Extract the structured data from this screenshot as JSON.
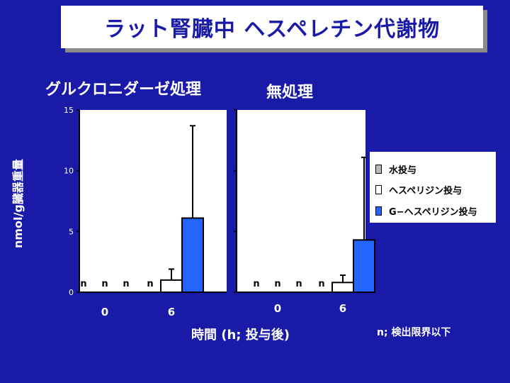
{
  "title": "ラット腎臓中 ヘスペレチン代謝物",
  "panels": [
    {
      "label": "グルクロニダーゼ処理"
    },
    {
      "label": "無処理"
    }
  ],
  "ylabel": "nmol/g臓器重量",
  "xlabel": "時間 (h; 投与後)",
  "note": "n; 検出限界以下",
  "nd_marker": "n",
  "legend": [
    {
      "label": "水投与",
      "swatch": "dotted"
    },
    {
      "label": "ヘスペリジン投与",
      "swatch": "white"
    },
    {
      "label": "G−ヘスペリジン投与",
      "swatch": "blue"
    }
  ],
  "colors": {
    "background": "#1a1aa8",
    "title_text": "#1a1aa8",
    "g_bar": "#2266ff",
    "plot_bg": "#ffffff"
  },
  "chart_data": [
    {
      "type": "bar",
      "title": "グルクロニダーゼ処理",
      "categories": [
        "0",
        "6"
      ],
      "ylim": [
        0,
        15
      ],
      "yticks": [
        "0",
        "5",
        "10",
        "15"
      ],
      "series": [
        {
          "name": "水投与",
          "values": [
            null,
            null
          ],
          "not_detected": [
            true,
            true
          ]
        },
        {
          "name": "ヘスペリジン投与",
          "values": [
            null,
            1.0
          ],
          "errors": [
            null,
            0.9
          ],
          "not_detected": [
            true,
            false
          ]
        },
        {
          "name": "G−ヘスペリジン投与",
          "values": [
            null,
            6.1
          ],
          "errors": [
            null,
            7.6
          ],
          "not_detected": [
            true,
            false
          ]
        }
      ]
    },
    {
      "type": "bar",
      "title": "無処理",
      "categories": [
        "0",
        "6"
      ],
      "ylim": [
        0,
        15
      ],
      "yticks": [
        "0",
        "5",
        "10",
        "15"
      ],
      "series": [
        {
          "name": "水投与",
          "values": [
            null,
            null
          ],
          "not_detected": [
            true,
            true
          ]
        },
        {
          "name": "ヘスペリジン投与",
          "values": [
            null,
            0.8
          ],
          "errors": [
            null,
            0.6
          ],
          "not_detected": [
            true,
            false
          ]
        },
        {
          "name": "G−ヘスペリジン投与",
          "values": [
            null,
            4.3
          ],
          "errors": [
            null,
            6.8
          ],
          "not_detected": [
            true,
            false
          ]
        }
      ]
    }
  ]
}
